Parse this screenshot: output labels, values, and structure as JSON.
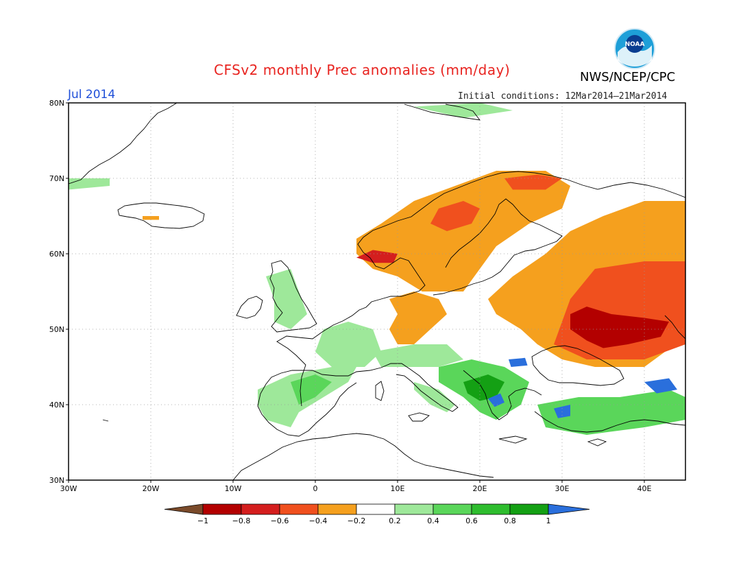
{
  "title": "CFSv2 monthly Prec anomalies (mm/day)",
  "agency": "NWS/NCEP/CPC",
  "logo_text": "NOAA",
  "month_label": "Jul 2014",
  "initial_conditions": "Initial conditions: 12Mar2014–21Mar2014",
  "map": {
    "lon_range": [
      -30,
      45
    ],
    "lat_range": [
      30,
      80
    ],
    "lon_ticks": [
      {
        "value": -30,
        "label": "30W"
      },
      {
        "value": -20,
        "label": "20W"
      },
      {
        "value": -10,
        "label": "10W"
      },
      {
        "value": 0,
        "label": "0"
      },
      {
        "value": 10,
        "label": "10E"
      },
      {
        "value": 20,
        "label": "20E"
      },
      {
        "value": 30,
        "label": "30E"
      },
      {
        "value": 40,
        "label": "40E"
      }
    ],
    "lat_ticks": [
      {
        "value": 30,
        "label": "30N"
      },
      {
        "value": 40,
        "label": "40N"
      },
      {
        "value": 50,
        "label": "50N"
      },
      {
        "value": 60,
        "label": "60N"
      },
      {
        "value": 70,
        "label": "70N"
      },
      {
        "value": 80,
        "label": "80N"
      }
    ],
    "grid": true
  },
  "colorbar": {
    "bins": [
      {
        "color": "#7a4a2a",
        "kind": "arrow-left"
      },
      {
        "color": "#b30000"
      },
      {
        "color": "#d41e1e"
      },
      {
        "color": "#f0501e"
      },
      {
        "color": "#f5a01e"
      },
      {
        "color": "#ffffff"
      },
      {
        "color": "#9ee89a"
      },
      {
        "color": "#5ad65a"
      },
      {
        "color": "#2ebd2e"
      },
      {
        "color": "#14a014"
      },
      {
        "color": "#2a6fdc",
        "kind": "arrow-right"
      }
    ],
    "labels": [
      "−1",
      "−0.8",
      "−0.6",
      "−0.4",
      "−0.2",
      "0.2",
      "0.4",
      "0.6",
      "0.8",
      "1"
    ]
  },
  "anomaly_regions": [
    {
      "name": "scandinavia-dry",
      "color": "#f5a01e",
      "points": [
        [
          5,
          62
        ],
        [
          8,
          64
        ],
        [
          12,
          67
        ],
        [
          17,
          69
        ],
        [
          22,
          71
        ],
        [
          28,
          71
        ],
        [
          31,
          69
        ],
        [
          30,
          66
        ],
        [
          26,
          64
        ],
        [
          22,
          61
        ],
        [
          20,
          58
        ],
        [
          18,
          55
        ],
        [
          13,
          55
        ],
        [
          10,
          57
        ],
        [
          7,
          58
        ],
        [
          5,
          60
        ]
      ]
    },
    {
      "name": "russia-dry",
      "color": "#f5a01e",
      "points": [
        [
          21,
          54
        ],
        [
          24,
          57
        ],
        [
          28,
          60
        ],
        [
          31,
          63
        ],
        [
          35,
          65
        ],
        [
          40,
          67
        ],
        [
          45,
          67
        ],
        [
          45,
          49
        ],
        [
          40,
          45
        ],
        [
          34,
          45
        ],
        [
          30,
          46
        ],
        [
          27,
          48
        ],
        [
          25,
          50
        ],
        [
          22,
          52
        ]
      ]
    },
    {
      "name": "central-europe-dry",
      "color": "#f5a01e",
      "points": [
        [
          9,
          54
        ],
        [
          12,
          55
        ],
        [
          15,
          54
        ],
        [
          16,
          52
        ],
        [
          14,
          50
        ],
        [
          12,
          48
        ],
        [
          10,
          48
        ],
        [
          9,
          50
        ],
        [
          10,
          52
        ]
      ]
    },
    {
      "name": "norway-orange",
      "color": "#f0501e",
      "points": [
        [
          15,
          66
        ],
        [
          18,
          67
        ],
        [
          20,
          66
        ],
        [
          19,
          64
        ],
        [
          16,
          63
        ],
        [
          14,
          64
        ]
      ]
    },
    {
      "name": "lapland-orange",
      "color": "#f0501e",
      "points": [
        [
          23,
          70
        ],
        [
          27,
          70.5
        ],
        [
          30,
          70
        ],
        [
          28,
          68.5
        ],
        [
          24,
          68.5
        ]
      ]
    },
    {
      "name": "norway-west-red",
      "color": "#d41e1e",
      "points": [
        [
          5,
          59.5
        ],
        [
          7,
          60.5
        ],
        [
          10,
          60
        ],
        [
          9.5,
          58.8
        ],
        [
          7,
          58.8
        ]
      ]
    },
    {
      "name": "russia-orange",
      "color": "#f0501e",
      "points": [
        [
          31,
          54
        ],
        [
          34,
          58
        ],
        [
          40,
          59
        ],
        [
          45,
          59
        ],
        [
          45,
          48
        ],
        [
          40,
          46
        ],
        [
          33,
          46
        ],
        [
          29,
          48
        ],
        [
          30,
          51
        ]
      ]
    },
    {
      "name": "russia-deep-red",
      "color": "#b30000",
      "points": [
        [
          31,
          52
        ],
        [
          33,
          53
        ],
        [
          36,
          52
        ],
        [
          40,
          51.5
        ],
        [
          43,
          51
        ],
        [
          42,
          49
        ],
        [
          38,
          48
        ],
        [
          35,
          47.5
        ],
        [
          33,
          48.5
        ],
        [
          31,
          50
        ]
      ]
    },
    {
      "name": "iceland-dry",
      "color": "#f5a01e",
      "points": [
        [
          -21,
          65
        ],
        [
          -19,
          65
        ],
        [
          -19,
          64.5
        ],
        [
          -21,
          64.5
        ]
      ]
    },
    {
      "name": "greenland-wet",
      "color": "#9ee89a",
      "points": [
        [
          -30,
          70
        ],
        [
          -25,
          70
        ],
        [
          -25,
          69
        ],
        [
          -30,
          68.5
        ]
      ]
    },
    {
      "name": "iberia-wet",
      "color": "#9ee89a",
      "points": [
        [
          -7,
          42
        ],
        [
          -3,
          44
        ],
        [
          2,
          45
        ],
        [
          5,
          45
        ],
        [
          4,
          43
        ],
        [
          1,
          41
        ],
        [
          -2,
          39
        ],
        [
          -3,
          37
        ],
        [
          -6,
          38
        ],
        [
          -7,
          40
        ]
      ]
    },
    {
      "name": "iberia-green",
      "color": "#5ad65a",
      "points": [
        [
          -3,
          43
        ],
        [
          0,
          44
        ],
        [
          2,
          43
        ],
        [
          0,
          41
        ],
        [
          -2,
          40
        ]
      ]
    },
    {
      "name": "france-wet",
      "color": "#9ee89a",
      "points": [
        [
          1,
          50
        ],
        [
          4,
          51
        ],
        [
          7,
          50
        ],
        [
          8,
          47
        ],
        [
          6,
          45
        ],
        [
          2,
          45
        ],
        [
          0,
          47
        ]
      ]
    },
    {
      "name": "uk-wet",
      "color": "#9ee89a",
      "points": [
        [
          -6,
          57
        ],
        [
          -3,
          58
        ],
        [
          -2,
          55
        ],
        [
          -1,
          52
        ],
        [
          -3,
          50
        ],
        [
          -5,
          51
        ],
        [
          -5,
          54
        ]
      ]
    },
    {
      "name": "alps-wet",
      "color": "#9ee89a",
      "points": [
        [
          7,
          47
        ],
        [
          12,
          48
        ],
        [
          16,
          48
        ],
        [
          18,
          46
        ],
        [
          15,
          45
        ],
        [
          11,
          45
        ],
        [
          8,
          45
        ]
      ]
    },
    {
      "name": "balkans-wet",
      "color": "#5ad65a",
      "points": [
        [
          15,
          45
        ],
        [
          19,
          46
        ],
        [
          23,
          45
        ],
        [
          26,
          43
        ],
        [
          25,
          40
        ],
        [
          22,
          38
        ],
        [
          20,
          39
        ],
        [
          18,
          41
        ],
        [
          15,
          43
        ]
      ]
    },
    {
      "name": "balkans-dark-green",
      "color": "#14a014",
      "points": [
        [
          18,
          43
        ],
        [
          21,
          44
        ],
        [
          23,
          43
        ],
        [
          22,
          41
        ],
        [
          20,
          40.5
        ],
        [
          18.5,
          41.5
        ]
      ]
    },
    {
      "name": "balkans-blue",
      "color": "#2a6fdc",
      "points": [
        [
          21,
          40.8
        ],
        [
          22.5,
          41.5
        ],
        [
          23,
          40.3
        ],
        [
          21.8,
          39.7
        ]
      ]
    },
    {
      "name": "romania-blue",
      "color": "#2a6fdc",
      "points": [
        [
          23.5,
          46
        ],
        [
          25.5,
          46.2
        ],
        [
          25.8,
          45.2
        ],
        [
          23.8,
          45
        ]
      ]
    },
    {
      "name": "italy-wet",
      "color": "#9ee89a",
      "points": [
        [
          12,
          43
        ],
        [
          15,
          42
        ],
        [
          17,
          40
        ],
        [
          16,
          39
        ],
        [
          14,
          40
        ],
        [
          12,
          42
        ]
      ]
    },
    {
      "name": "turkey-wet",
      "color": "#5ad65a",
      "points": [
        [
          27,
          40
        ],
        [
          32,
          41
        ],
        [
          37,
          41
        ],
        [
          43,
          42
        ],
        [
          45,
          41
        ],
        [
          45,
          38
        ],
        [
          40,
          37
        ],
        [
          33,
          36
        ],
        [
          28,
          37
        ]
      ]
    },
    {
      "name": "turkey-blue",
      "color": "#2a6fdc",
      "points": [
        [
          29,
          39.5
        ],
        [
          31,
          40
        ],
        [
          31,
          38.5
        ],
        [
          29.5,
          38.2
        ]
      ]
    },
    {
      "name": "caucasus-blue",
      "color": "#2a6fdc",
      "points": [
        [
          40,
          43
        ],
        [
          43,
          43.5
        ],
        [
          44,
          42
        ],
        [
          41.5,
          41.5
        ]
      ]
    },
    {
      "name": "svalbard-wet",
      "color": "#9ee89a",
      "points": [
        [
          12,
          79.5
        ],
        [
          20,
          80
        ],
        [
          24,
          79
        ],
        [
          18,
          78
        ]
      ]
    }
  ]
}
